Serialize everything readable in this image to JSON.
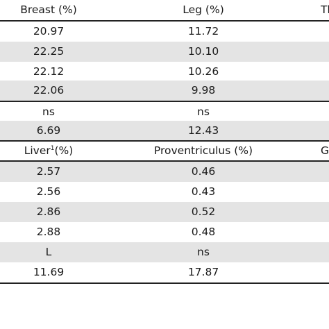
{
  "header1": {
    "c1": "Breast (%)",
    "c2": "Leg (%)",
    "c3": "Th"
  },
  "rows1": [
    {
      "c1": "20.97",
      "c2": "11.72"
    },
    {
      "c1": "22.25",
      "c2": "10.10"
    },
    {
      "c1": "22.12",
      "c2": "10.26"
    },
    {
      "c1": "22.06",
      "c2": "9.98"
    },
    {
      "c1": "ns",
      "c2": "ns"
    },
    {
      "c1": "6.69",
      "c2": "12.43"
    }
  ],
  "header2": {
    "c1": "Liver",
    "c1_sup": "1",
    "c1_suffix": "(%)",
    "c2": "Proventriculus (%)",
    "c3": "Gi"
  },
  "rows2": [
    {
      "c1": "2.57",
      "c2": "0.46"
    },
    {
      "c1": "2.56",
      "c2": "0.43"
    },
    {
      "c1": "2.86",
      "c2": "0.52"
    },
    {
      "c1": "2.88",
      "c2": "0.48"
    },
    {
      "c1": "L",
      "c2": "ns"
    },
    {
      "c1": "11.69",
      "c2": "17.87"
    }
  ]
}
